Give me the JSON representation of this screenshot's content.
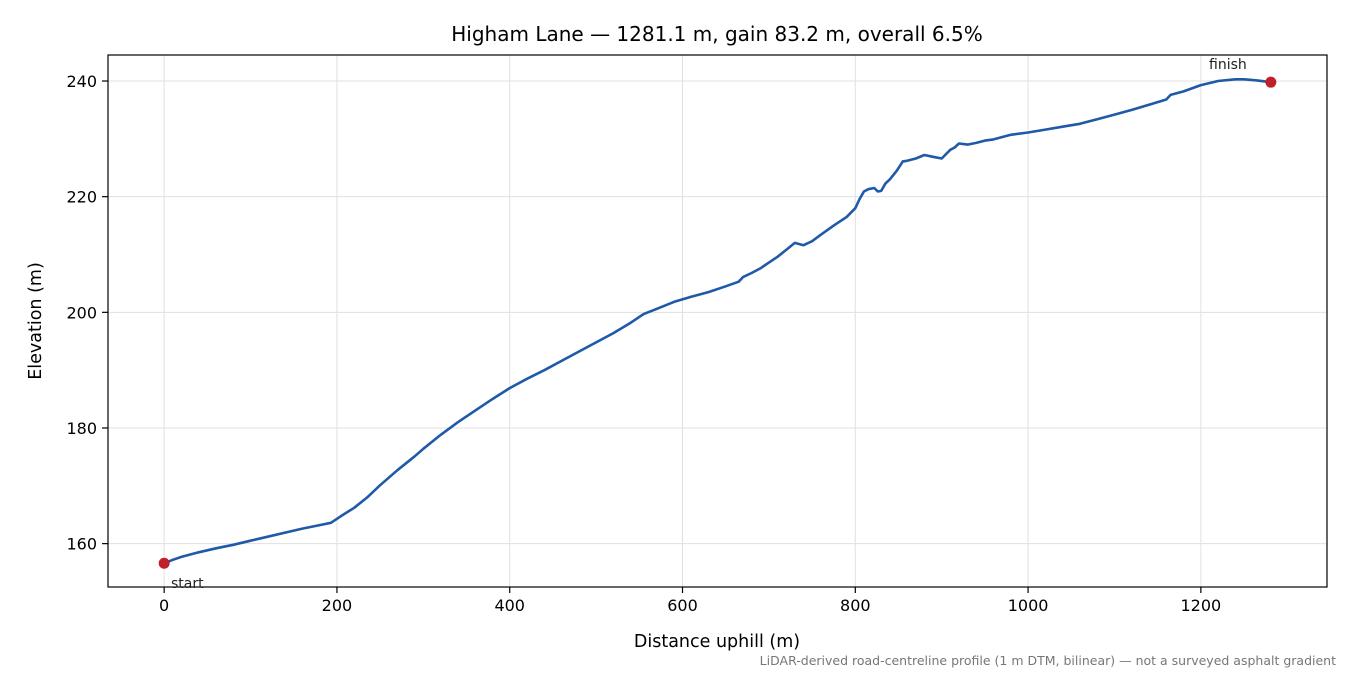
{
  "chart_data": {
    "type": "line",
    "title": "Higham Lane — 1281.1 m, gain 83.2 m, overall 6.5%",
    "xlabel": "Distance uphill (m)",
    "ylabel": "Elevation (m)",
    "xlim": [
      -65,
      1346
    ],
    "ylim": [
      152.5,
      244.5
    ],
    "xticks": [
      0,
      200,
      400,
      600,
      800,
      1000,
      1200
    ],
    "yticks": [
      160,
      180,
      200,
      220,
      240
    ],
    "grid": true,
    "line_color": "#1f5aa8",
    "marker_color": "#c0202a",
    "series": [
      {
        "x": [
          0,
          10,
          20,
          40,
          60,
          80,
          100,
          120,
          140,
          160,
          180,
          193,
          205,
          220,
          235,
          250,
          270,
          290,
          300,
          320,
          340,
          360,
          380,
          400,
          420,
          440,
          460,
          480,
          500,
          520,
          540,
          555,
          570,
          590,
          610,
          630,
          650,
          665,
          670,
          680,
          690,
          700,
          710,
          720,
          730,
          740,
          750,
          760,
          775,
          790,
          800,
          805,
          810,
          815,
          822,
          826,
          830,
          835,
          840,
          848,
          855,
          860,
          870,
          880,
          890,
          900,
          910,
          915,
          920,
          930,
          940,
          950,
          960,
          980,
          1000,
          1020,
          1040,
          1060,
          1080,
          1100,
          1120,
          1140,
          1160,
          1165,
          1180,
          1200,
          1220,
          1240,
          1250,
          1265,
          1281
        ],
        "y": [
          156.6,
          157.2,
          157.7,
          158.5,
          159.2,
          159.8,
          160.5,
          161.2,
          161.9,
          162.6,
          163.2,
          163.6,
          164.8,
          166.2,
          168.0,
          170.1,
          172.7,
          175.1,
          176.4,
          178.8,
          181.0,
          183.0,
          185.0,
          186.9,
          188.5,
          190.0,
          191.6,
          193.2,
          194.8,
          196.4,
          198.2,
          199.7,
          200.6,
          201.8,
          202.7,
          203.5,
          204.5,
          205.3,
          206.1,
          206.8,
          207.6,
          208.6,
          209.6,
          210.8,
          212.0,
          211.6,
          212.3,
          213.4,
          215.0,
          216.5,
          218.0,
          219.6,
          220.9,
          221.3,
          221.5,
          220.9,
          221.0,
          222.3,
          223.0,
          224.5,
          226.1,
          226.2,
          226.6,
          227.2,
          226.9,
          226.6,
          228.1,
          228.5,
          229.2,
          229.0,
          229.3,
          229.7,
          229.9,
          230.7,
          231.1,
          231.6,
          232.1,
          232.6,
          233.4,
          234.2,
          235.0,
          235.9,
          236.8,
          237.6,
          238.2,
          239.3,
          240.0,
          240.3,
          240.3,
          240.1,
          239.8
        ]
      }
    ],
    "annotations": [
      {
        "text": "start",
        "x": 0,
        "y": 156.6
      },
      {
        "text": "finish",
        "x": 1281,
        "y": 239.8
      }
    ],
    "footnote": "LiDAR-derived road-centreline profile (1 m DTM, bilinear) — not a surveyed asphalt gradient"
  }
}
